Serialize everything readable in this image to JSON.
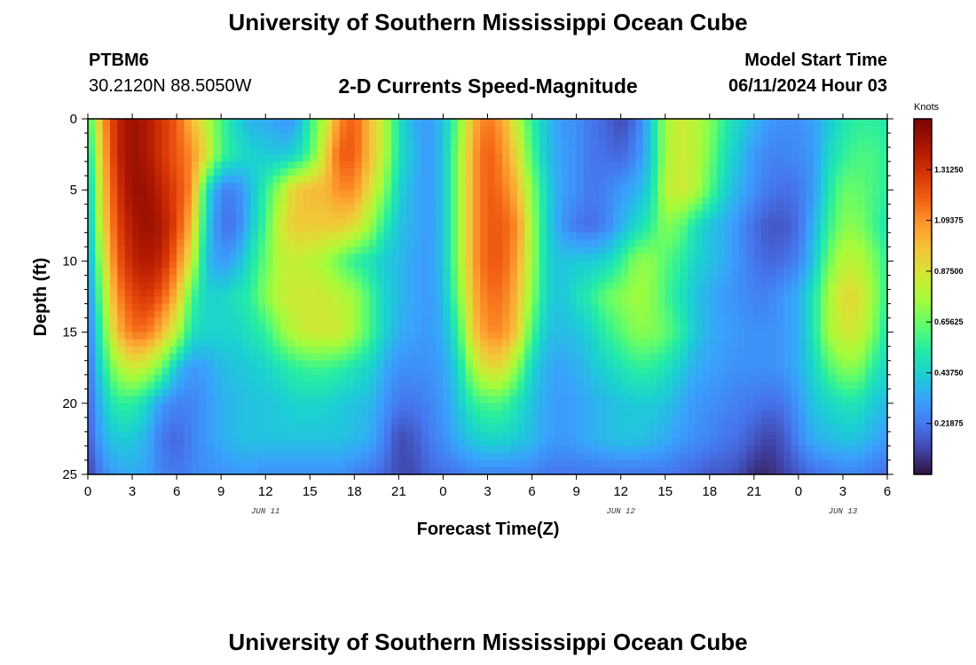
{
  "page": {
    "title": "University of Southern Mississippi Ocean Cube",
    "title_repeat": "University of Southern Mississippi Ocean Cube",
    "station": "PTBM6",
    "coordinates": "30.2120N  88.5050W",
    "subtitle": "2-D Currents Speed-Magnitude",
    "model_start_label": "Model Start Time",
    "model_start_value": "06/11/2024 Hour 03"
  },
  "colors": {
    "background": "#ffffff",
    "axis": "#000000"
  },
  "chart_data": {
    "type": "heatmap",
    "title": "2-D Currents Speed-Magnitude",
    "xlabel": "Forecast Time(Z)",
    "ylabel": "Depth (ft)",
    "x_range_hours": [
      0,
      54
    ],
    "ylim": [
      0,
      25
    ],
    "y_inverted": true,
    "x_ticks": [
      {
        "hour": 0,
        "label": "0"
      },
      {
        "hour": 3,
        "label": "3"
      },
      {
        "hour": 6,
        "label": "6"
      },
      {
        "hour": 9,
        "label": "9"
      },
      {
        "hour": 12,
        "label": "12"
      },
      {
        "hour": 15,
        "label": "15"
      },
      {
        "hour": 18,
        "label": "18"
      },
      {
        "hour": 21,
        "label": "21"
      },
      {
        "hour": 24,
        "label": "0"
      },
      {
        "hour": 27,
        "label": "3"
      },
      {
        "hour": 30,
        "label": "6"
      },
      {
        "hour": 33,
        "label": "9"
      },
      {
        "hour": 36,
        "label": "12"
      },
      {
        "hour": 39,
        "label": "15"
      },
      {
        "hour": 42,
        "label": "18"
      },
      {
        "hour": 45,
        "label": "21"
      },
      {
        "hour": 48,
        "label": "0"
      },
      {
        "hour": 51,
        "label": "3"
      },
      {
        "hour": 54,
        "label": "6"
      }
    ],
    "date_labels": [
      {
        "hour": 12,
        "label": "JUN 11"
      },
      {
        "hour": 36,
        "label": "JUN 12"
      },
      {
        "hour": 51,
        "label": "JUN 13"
      }
    ],
    "y_ticks": [
      0,
      5,
      10,
      15,
      20,
      25
    ],
    "colorbar": {
      "unit": "Knots",
      "min": 0.0,
      "max": 1.53125,
      "ticks": [
        "0.21875",
        "0.43750",
        "0.65625",
        "0.87500",
        "1.09375",
        "1.31250"
      ]
    },
    "depths_ft": [
      0,
      2.5,
      5,
      7.5,
      10,
      12.5,
      15,
      17.5,
      20,
      22.5,
      25
    ],
    "times_hr": [
      0,
      1,
      2,
      3,
      4,
      5,
      6,
      7,
      8,
      9,
      10,
      11,
      12,
      13,
      14,
      15,
      16,
      17,
      18,
      19,
      20,
      21,
      22,
      23,
      24,
      25,
      26,
      27,
      28,
      29,
      30,
      31,
      32,
      33,
      34,
      35,
      36,
      37,
      38,
      39,
      40,
      41,
      42,
      43,
      44,
      45,
      46,
      47,
      48,
      49,
      50,
      51,
      52,
      53,
      54
    ],
    "speed_knots": [
      [
        0.55,
        1.05,
        1.35,
        1.45,
        1.4,
        1.3,
        1.2,
        1.0,
        0.8,
        0.6,
        0.45,
        0.35,
        0.35,
        0.3,
        0.3,
        0.55,
        0.8,
        1.1,
        1.2,
        1.0,
        0.8,
        0.5,
        0.35,
        0.3,
        0.4,
        0.65,
        1.0,
        1.15,
        1.05,
        0.8,
        0.55,
        0.4,
        0.3,
        0.28,
        0.22,
        0.18,
        0.12,
        0.2,
        0.4,
        0.75,
        0.85,
        0.8,
        0.7,
        0.55,
        0.45,
        0.38,
        0.3,
        0.28,
        0.28,
        0.32,
        0.4,
        0.5,
        0.55,
        0.55,
        0.52
      ],
      [
        0.45,
        1.0,
        1.35,
        1.45,
        1.4,
        1.3,
        1.2,
        1.1,
        0.9,
        0.6,
        0.5,
        0.45,
        0.42,
        0.4,
        0.45,
        0.6,
        0.9,
        1.2,
        1.2,
        1.0,
        0.8,
        0.5,
        0.38,
        0.3,
        0.4,
        0.7,
        1.05,
        1.2,
        1.1,
        0.9,
        0.6,
        0.4,
        0.32,
        0.28,
        0.22,
        0.2,
        0.18,
        0.25,
        0.4,
        0.75,
        0.85,
        0.8,
        0.68,
        0.5,
        0.4,
        0.3,
        0.26,
        0.25,
        0.27,
        0.3,
        0.45,
        0.55,
        0.6,
        0.6,
        0.55
      ],
      [
        0.38,
        0.95,
        1.3,
        1.45,
        1.45,
        1.35,
        1.25,
        1.1,
        0.5,
        0.25,
        0.25,
        0.38,
        0.55,
        0.75,
        0.95,
        1.0,
        1.0,
        1.1,
        1.1,
        0.9,
        0.7,
        0.45,
        0.35,
        0.3,
        0.4,
        0.7,
        1.05,
        1.2,
        1.15,
        1.0,
        0.7,
        0.45,
        0.32,
        0.28,
        0.22,
        0.25,
        0.3,
        0.35,
        0.45,
        0.8,
        0.85,
        0.8,
        0.62,
        0.45,
        0.35,
        0.28,
        0.22,
        0.2,
        0.22,
        0.3,
        0.5,
        0.65,
        0.65,
        0.6,
        0.55
      ],
      [
        0.35,
        0.9,
        1.25,
        1.4,
        1.45,
        1.4,
        1.25,
        1.0,
        0.45,
        0.22,
        0.22,
        0.4,
        0.6,
        0.85,
        0.95,
        0.95,
        0.95,
        0.95,
        0.9,
        0.75,
        0.55,
        0.4,
        0.35,
        0.3,
        0.4,
        0.7,
        1.05,
        1.2,
        1.2,
        1.1,
        0.75,
        0.45,
        0.3,
        0.22,
        0.2,
        0.25,
        0.35,
        0.45,
        0.55,
        0.7,
        0.65,
        0.5,
        0.4,
        0.35,
        0.28,
        0.2,
        0.15,
        0.15,
        0.2,
        0.35,
        0.55,
        0.7,
        0.7,
        0.6,
        0.5
      ],
      [
        0.3,
        0.8,
        1.2,
        1.35,
        1.4,
        1.35,
        1.15,
        0.85,
        0.4,
        0.3,
        0.35,
        0.5,
        0.65,
        0.8,
        0.82,
        0.8,
        0.75,
        0.65,
        0.55,
        0.5,
        0.42,
        0.38,
        0.33,
        0.3,
        0.4,
        0.7,
        1.05,
        1.2,
        1.2,
        1.05,
        0.75,
        0.45,
        0.4,
        0.42,
        0.42,
        0.45,
        0.55,
        0.7,
        0.72,
        0.62,
        0.55,
        0.45,
        0.4,
        0.35,
        0.28,
        0.22,
        0.18,
        0.2,
        0.25,
        0.4,
        0.65,
        0.8,
        0.8,
        0.7,
        0.55
      ],
      [
        0.25,
        0.7,
        1.1,
        1.25,
        1.3,
        1.2,
        1.0,
        0.6,
        0.45,
        0.45,
        0.5,
        0.55,
        0.7,
        0.82,
        0.85,
        0.85,
        0.85,
        0.8,
        0.75,
        0.6,
        0.45,
        0.38,
        0.33,
        0.3,
        0.38,
        0.65,
        1.0,
        1.15,
        1.15,
        1.0,
        0.7,
        0.45,
        0.4,
        0.48,
        0.55,
        0.65,
        0.7,
        0.75,
        0.72,
        0.6,
        0.5,
        0.4,
        0.35,
        0.3,
        0.28,
        0.25,
        0.25,
        0.3,
        0.35,
        0.5,
        0.75,
        0.9,
        0.9,
        0.75,
        0.55
      ],
      [
        0.22,
        0.6,
        1.0,
        1.15,
        1.15,
        1.0,
        0.8,
        0.5,
        0.45,
        0.45,
        0.45,
        0.5,
        0.55,
        0.7,
        0.8,
        0.85,
        0.85,
        0.85,
        0.75,
        0.6,
        0.45,
        0.35,
        0.32,
        0.3,
        0.35,
        0.55,
        0.95,
        1.1,
        1.1,
        0.95,
        0.6,
        0.4,
        0.38,
        0.4,
        0.45,
        0.55,
        0.62,
        0.7,
        0.7,
        0.65,
        0.55,
        0.42,
        0.35,
        0.32,
        0.3,
        0.28,
        0.28,
        0.3,
        0.35,
        0.5,
        0.75,
        0.85,
        0.85,
        0.7,
        0.5
      ],
      [
        0.2,
        0.5,
        0.75,
        0.85,
        0.8,
        0.65,
        0.4,
        0.3,
        0.32,
        0.38,
        0.4,
        0.42,
        0.45,
        0.5,
        0.55,
        0.58,
        0.58,
        0.55,
        0.5,
        0.45,
        0.35,
        0.28,
        0.28,
        0.28,
        0.32,
        0.45,
        0.75,
        0.9,
        0.9,
        0.7,
        0.45,
        0.35,
        0.32,
        0.35,
        0.4,
        0.45,
        0.5,
        0.55,
        0.55,
        0.5,
        0.42,
        0.35,
        0.32,
        0.3,
        0.28,
        0.28,
        0.28,
        0.3,
        0.35,
        0.45,
        0.6,
        0.7,
        0.7,
        0.55,
        0.45
      ],
      [
        0.18,
        0.4,
        0.55,
        0.55,
        0.45,
        0.3,
        0.25,
        0.25,
        0.3,
        0.35,
        0.38,
        0.4,
        0.4,
        0.42,
        0.45,
        0.45,
        0.45,
        0.42,
        0.4,
        0.38,
        0.3,
        0.22,
        0.22,
        0.25,
        0.3,
        0.4,
        0.55,
        0.6,
        0.6,
        0.5,
        0.4,
        0.33,
        0.3,
        0.32,
        0.35,
        0.38,
        0.4,
        0.42,
        0.42,
        0.4,
        0.35,
        0.3,
        0.28,
        0.26,
        0.24,
        0.22,
        0.2,
        0.22,
        0.3,
        0.4,
        0.45,
        0.5,
        0.5,
        0.42,
        0.38
      ],
      [
        0.15,
        0.35,
        0.42,
        0.42,
        0.35,
        0.22,
        0.18,
        0.25,
        0.3,
        0.35,
        0.38,
        0.4,
        0.4,
        0.4,
        0.4,
        0.4,
        0.4,
        0.4,
        0.38,
        0.35,
        0.25,
        0.12,
        0.15,
        0.22,
        0.28,
        0.35,
        0.42,
        0.45,
        0.45,
        0.42,
        0.38,
        0.32,
        0.3,
        0.32,
        0.35,
        0.38,
        0.4,
        0.4,
        0.38,
        0.35,
        0.3,
        0.28,
        0.25,
        0.22,
        0.2,
        0.15,
        0.1,
        0.15,
        0.25,
        0.35,
        0.38,
        0.4,
        0.4,
        0.35,
        0.3
      ],
      [
        0.1,
        0.25,
        0.32,
        0.35,
        0.32,
        0.25,
        0.22,
        0.25,
        0.28,
        0.28,
        0.3,
        0.3,
        0.28,
        0.28,
        0.28,
        0.28,
        0.28,
        0.28,
        0.25,
        0.22,
        0.18,
        0.12,
        0.12,
        0.18,
        0.2,
        0.22,
        0.25,
        0.25,
        0.25,
        0.25,
        0.25,
        0.22,
        0.22,
        0.22,
        0.22,
        0.22,
        0.22,
        0.22,
        0.22,
        0.22,
        0.2,
        0.18,
        0.15,
        0.15,
        0.12,
        0.05,
        0.05,
        0.1,
        0.15,
        0.2,
        0.22,
        0.25,
        0.25,
        0.22,
        0.2
      ]
    ]
  }
}
